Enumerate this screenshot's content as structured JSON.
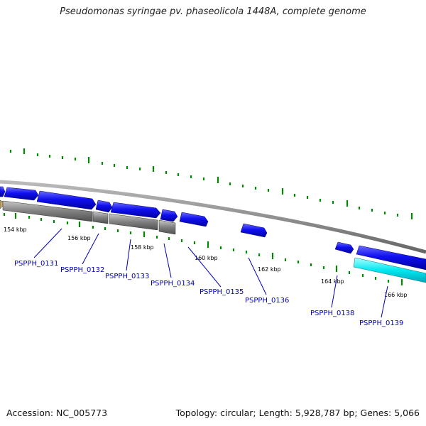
{
  "title": "Pseudomonas syringae pv. phaseolicola 1448A, complete genome",
  "footer": {
    "accession": "Accession: NC_005773",
    "summary": "Topology: circular; Length: 5,928,787 bp; Genes: 5,066"
  },
  "colors": {
    "gene_forward": "#0000ee",
    "gene_reverse": "#0000ee",
    "gene_highlight": "#00e5f0",
    "pseudogene": "#777777",
    "backbone": "#888888",
    "tick": "#008800",
    "label": "#0000bb"
  },
  "scale_labels": [
    "154 kbp",
    "156 kbp",
    "158 kbp",
    "160 kbp",
    "162 kbp",
    "164 kbp",
    "166 kbp"
  ],
  "gene_labels": [
    "PSPPH_0131",
    "PSPPH_0132",
    "PSPPH_0133",
    "PSPPH_0134",
    "PSPPH_0135",
    "PSPPH_0136",
    "PSPPH_0138",
    "PSPPH_0139"
  ]
}
